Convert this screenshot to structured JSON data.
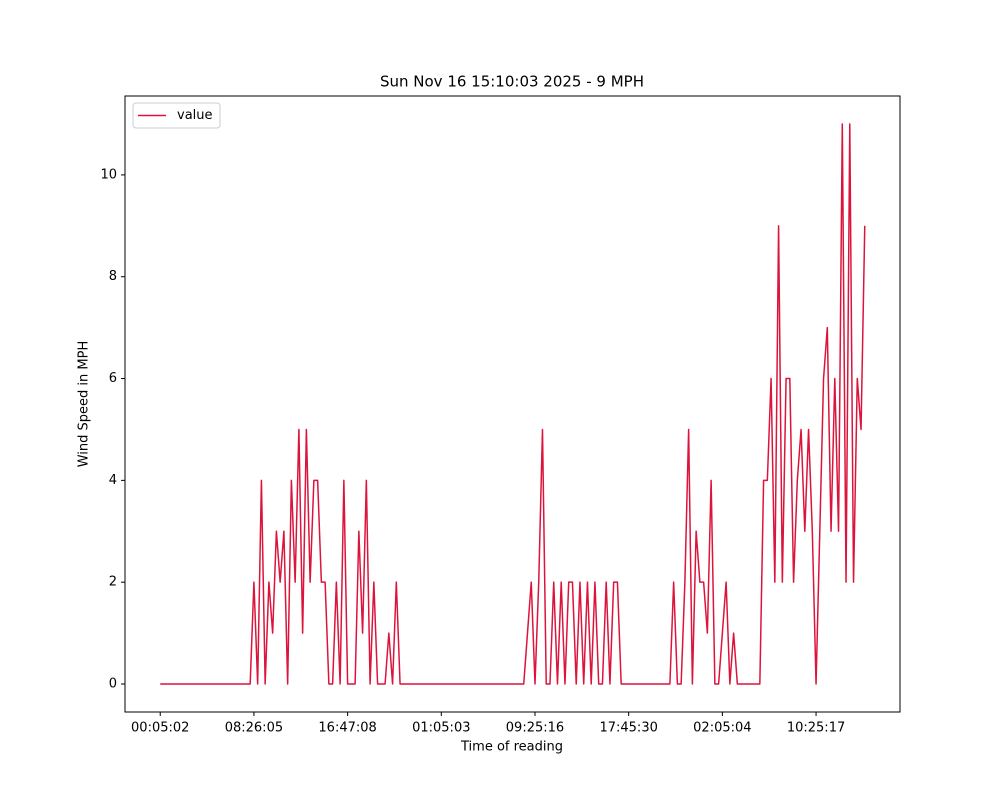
{
  "chart_data": {
    "type": "line",
    "title": "Sun Nov 16 15:10:03 2025 - 9 MPH",
    "x_label": "Time of reading",
    "y_label": "Wind Speed in MPH",
    "categories": [
      "00:05:02",
      null,
      null,
      null,
      null,
      null,
      null,
      null,
      null,
      null,
      null,
      null,
      null,
      null,
      null,
      null,
      null,
      null,
      null,
      null,
      null,
      null,
      null,
      null,
      null,
      "08:26:05",
      null,
      null,
      null,
      null,
      null,
      null,
      null,
      null,
      null,
      null,
      null,
      null,
      null,
      null,
      null,
      null,
      null,
      null,
      null,
      null,
      null,
      null,
      null,
      null,
      "16:47:08",
      null,
      null,
      null,
      null,
      null,
      null,
      null,
      null,
      null,
      null,
      null,
      null,
      null,
      null,
      null,
      null,
      null,
      null,
      null,
      null,
      null,
      null,
      null,
      null,
      "01:05:03",
      null,
      null,
      null,
      null,
      null,
      null,
      null,
      null,
      null,
      null,
      null,
      null,
      null,
      null,
      null,
      null,
      null,
      null,
      null,
      null,
      null,
      null,
      null,
      null,
      "09:25:16",
      null,
      null,
      null,
      null,
      null,
      null,
      null,
      null,
      null,
      null,
      null,
      null,
      null,
      null,
      null,
      null,
      null,
      null,
      null,
      null,
      null,
      null,
      null,
      null,
      "17:45:30",
      null,
      null,
      null,
      null,
      null,
      null,
      null,
      null,
      null,
      null,
      null,
      null,
      null,
      null,
      null,
      null,
      null,
      null,
      null,
      null,
      null,
      null,
      null,
      null,
      "02:05:04",
      null,
      null,
      null,
      null,
      null,
      null,
      null,
      null,
      null,
      null,
      null,
      null,
      null,
      null,
      null,
      null,
      null,
      null,
      null,
      null,
      null,
      null,
      null,
      null,
      "10:25:17",
      null,
      null,
      null,
      null,
      null,
      null,
      null,
      null,
      null,
      null,
      null,
      null,
      null
    ],
    "series": [
      {
        "name": "value",
        "color": "#dc143c",
        "values": [
          0,
          0,
          0,
          0,
          0,
          0,
          0,
          0,
          0,
          0,
          0,
          0,
          0,
          0,
          0,
          0,
          0,
          0,
          0,
          0,
          0,
          0,
          0,
          0,
          0,
          2,
          0,
          4,
          0,
          2,
          1,
          3,
          2,
          3,
          0,
          4,
          2,
          5,
          1,
          5,
          2,
          4,
          4,
          2,
          2,
          0,
          0,
          2,
          0,
          4,
          0,
          0,
          0,
          3,
          1,
          4,
          0,
          2,
          0,
          0,
          0,
          1,
          0,
          2,
          0,
          0,
          0,
          0,
          0,
          0,
          0,
          0,
          0,
          0,
          0,
          0,
          0,
          0,
          0,
          0,
          0,
          0,
          0,
          0,
          0,
          0,
          0,
          0,
          0,
          0,
          0,
          0,
          0,
          0,
          0,
          0,
          0,
          0,
          1,
          2,
          0,
          2,
          5,
          0,
          0,
          2,
          0,
          2,
          0,
          2,
          2,
          0,
          2,
          0,
          2,
          0,
          2,
          0,
          0,
          2,
          0,
          2,
          2,
          0,
          0,
          0,
          0,
          0,
          0,
          0,
          0,
          0,
          0,
          0,
          0,
          0,
          0,
          2,
          0,
          0,
          2,
          5,
          0,
          3,
          2,
          2,
          1,
          4,
          0,
          0,
          1,
          2,
          0,
          1,
          0,
          0,
          0,
          0,
          0,
          0,
          0,
          4,
          4,
          6,
          2,
          9,
          2,
          6,
          6,
          2,
          4,
          5,
          3,
          5,
          3,
          0,
          3,
          6,
          7,
          3,
          6,
          3,
          11,
          2,
          11,
          2,
          6,
          5,
          9
        ]
      }
    ],
    "ylim": [
      -0.55,
      11.55
    ],
    "yticks": [
      0,
      2,
      4,
      6,
      8,
      10
    ],
    "legend": "upper left"
  }
}
